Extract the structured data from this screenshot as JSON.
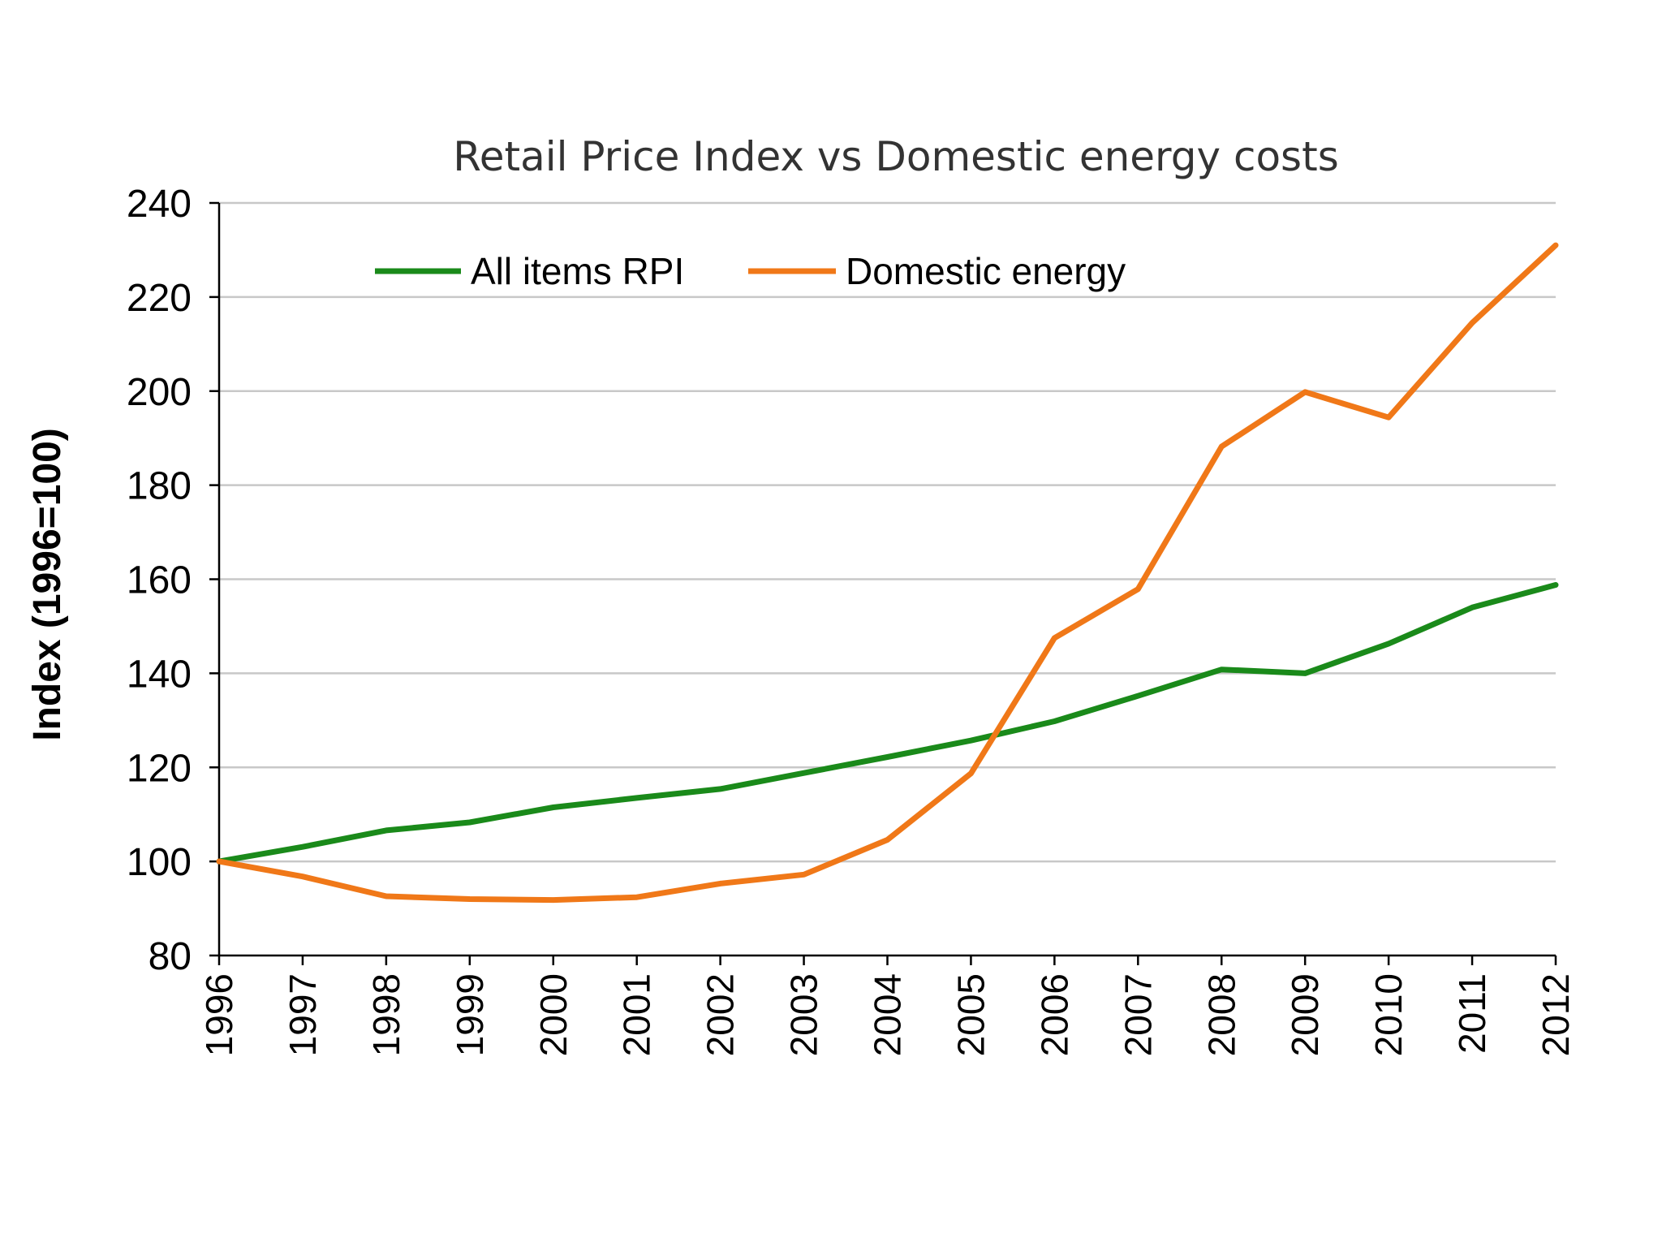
{
  "chart_data": {
    "type": "line",
    "title": "Retail Price Index vs Domestic energy costs",
    "xlabel": "",
    "ylabel": "Index (1996=100)",
    "ylim": [
      80,
      240
    ],
    "yticks": [
      80,
      100,
      120,
      140,
      160,
      180,
      200,
      220,
      240
    ],
    "grid": true,
    "legend_position": "top-left",
    "categories": [
      "1996",
      "1997",
      "1998",
      "1999",
      "2000",
      "2001",
      "2002",
      "2003",
      "2004",
      "2005",
      "2006",
      "2007",
      "2008",
      "2009",
      "2010",
      "2011",
      "2012"
    ],
    "series": [
      {
        "name": "All items RPI",
        "color": "#1a8a1a",
        "values": [
          100,
          103.1,
          106.6,
          108.3,
          111.5,
          113.5,
          115.4,
          118.8,
          122.2,
          125.7,
          129.8,
          135.2,
          140.8,
          140.0,
          146.3,
          154.0,
          158.8
        ]
      },
      {
        "name": "Domestic energy",
        "color": "#f07818",
        "values": [
          100,
          96.8,
          92.6,
          92.0,
          91.8,
          92.4,
          95.3,
          97.2,
          104.6,
          118.7,
          147.5,
          157.9,
          188.2,
          199.8,
          194.4,
          214.5,
          231.0
        ]
      }
    ]
  }
}
